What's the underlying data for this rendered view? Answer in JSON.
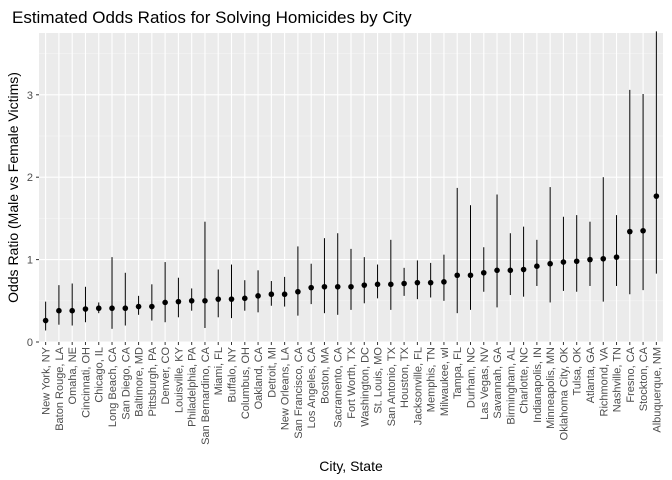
{
  "chart_data": {
    "type": "scatter",
    "title": "Estimated Odds Ratios for Solving Homicides by City",
    "xlabel": "City, State",
    "ylabel": "Odds Ratio (Male vs Female Victims)",
    "ylim": [
      0,
      3.75
    ],
    "yticks": [
      0,
      1,
      2,
      3
    ],
    "grid": true,
    "legend": "none",
    "colors": {
      "panel": "#ebebeb",
      "grid_major": "#ffffff",
      "grid_minor": "#f5f5f5",
      "point": "#000000",
      "errorbar": "#000000"
    },
    "categories": [
      "New York, NY",
      "Baton Rouge, LA",
      "Omaha, NE",
      "Cincinnati, OH",
      "Chicago, IL",
      "Long Beach, CA",
      "San Diego, CA",
      "Baltimore, MD",
      "Pittsburgh, PA",
      "Denver, CO",
      "Louisville, KY",
      "Philadelphia, PA",
      "San Bernardino, CA",
      "Miami, FL",
      "Buffalo, NY",
      "Columbus, OH",
      "Oakland, CA",
      "Detroit, MI",
      "New Orleans, LA",
      "San Francisco, CA",
      "Los Angeles, CA",
      "Boston, MA",
      "Sacramento, CA",
      "Fort Worth, TX",
      "Washington, DC",
      "St. Louis, MO",
      "San Antonio, TX",
      "Houston, TX",
      "Jacksonville, FL",
      "Memphis, TN",
      "Milwaukee, wI",
      "Tampa, FL",
      "Durham, NC",
      "Las Vegas, NV",
      "Savannah, GA",
      "Birmingham, AL",
      "Charlotte, NC",
      "Indianapolis, IN",
      "Minneapolis, MN",
      "Oklahoma City, OK",
      "Tulsa, OK",
      "Atlanta, GA",
      "Richmond, VA",
      "Nashville, TN",
      "Fresno, CA",
      "Stockton, CA",
      "Albuquerque, NM"
    ],
    "series": [
      {
        "estimate": [
          0.26,
          0.38,
          0.38,
          0.4,
          0.41,
          0.41,
          0.41,
          0.43,
          0.43,
          0.48,
          0.49,
          0.5,
          0.5,
          0.52,
          0.52,
          0.53,
          0.56,
          0.58,
          0.58,
          0.61,
          0.66,
          0.67,
          0.67,
          0.67,
          0.69,
          0.7,
          0.7,
          0.71,
          0.72,
          0.72,
          0.73,
          0.81,
          0.81,
          0.84,
          0.87,
          0.87,
          0.88,
          0.92,
          0.95,
          0.97,
          0.98,
          1.0,
          1.01,
          1.03,
          1.34,
          1.35,
          1.77
        ],
        "lower": [
          0.14,
          0.21,
          0.2,
          0.24,
          0.35,
          0.16,
          0.2,
          0.33,
          0.26,
          0.24,
          0.3,
          0.38,
          0.17,
          0.3,
          0.29,
          0.38,
          0.36,
          0.44,
          0.43,
          0.32,
          0.46,
          0.35,
          0.33,
          0.39,
          0.47,
          0.53,
          0.39,
          0.56,
          0.52,
          0.54,
          0.5,
          0.35,
          0.39,
          0.61,
          0.42,
          0.57,
          0.55,
          0.68,
          0.48,
          0.62,
          0.61,
          0.68,
          0.49,
          0.68,
          0.58,
          0.63,
          0.83
        ],
        "upper": [
          0.49,
          0.69,
          0.71,
          0.67,
          0.48,
          1.03,
          0.84,
          0.56,
          0.7,
          0.97,
          0.78,
          0.65,
          1.46,
          0.88,
          0.94,
          0.75,
          0.87,
          0.74,
          0.79,
          1.16,
          0.95,
          1.26,
          1.32,
          1.13,
          1.03,
          0.94,
          1.24,
          0.9,
          0.99,
          0.96,
          1.06,
          1.87,
          1.66,
          1.15,
          1.79,
          1.32,
          1.4,
          1.24,
          1.88,
          1.52,
          1.54,
          1.46,
          2.0,
          1.54,
          3.06,
          3.01,
          3.77
        ]
      }
    ]
  }
}
